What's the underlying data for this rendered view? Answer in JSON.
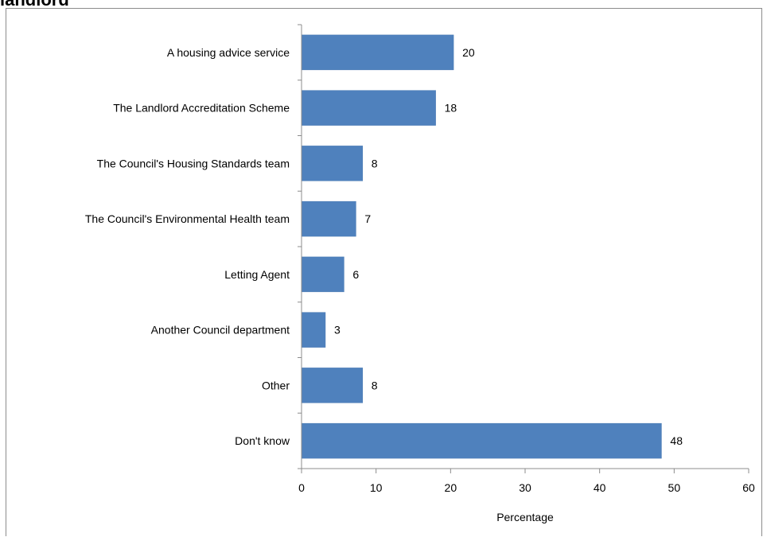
{
  "title": "landlord",
  "colors": {
    "bar": "#4f81bd",
    "axis": "#8c8c8c"
  },
  "chart_data": {
    "type": "bar",
    "orientation": "horizontal",
    "title": "landlord",
    "xlabel": "Percentage",
    "ylabel": "",
    "xlim": [
      0,
      60
    ],
    "xticks": [
      0,
      10,
      20,
      30,
      40,
      50,
      60
    ],
    "grid": false,
    "categories": [
      "A housing advice service",
      "The Landlord Accreditation Scheme",
      "The Council's Housing Standards team",
      "The Council's Environmental Health team",
      "Letting Agent",
      "Another Council department",
      "Other",
      "Don't know"
    ],
    "values": [
      20.4,
      18,
      8.2,
      7.3,
      5.7,
      3.2,
      8.2,
      48.3
    ],
    "data_labels": [
      "20",
      "18",
      "8",
      "7",
      "6",
      "3",
      "8",
      "48"
    ]
  }
}
